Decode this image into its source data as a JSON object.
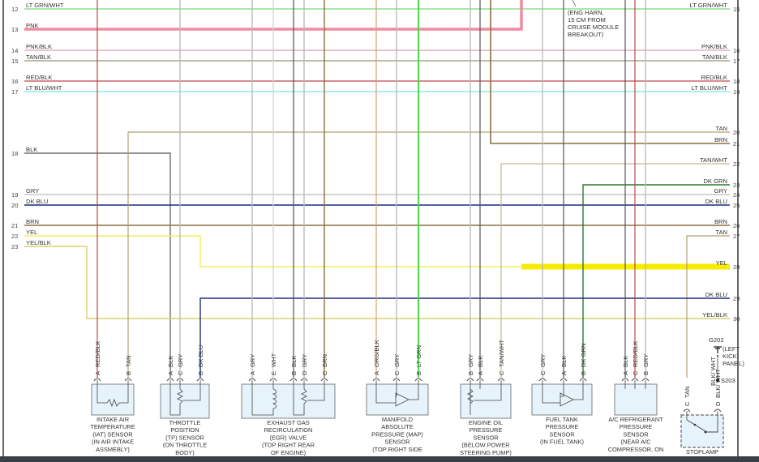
{
  "left_wires": [
    {
      "num": "12",
      "label": "LT GRN/WHT",
      "color": "#8ee08e"
    },
    {
      "num": "13",
      "label": "PNK",
      "color": "#f08ca2"
    },
    {
      "num": "14",
      "label": "PNK/BLK",
      "color": "#d8a4b4"
    },
    {
      "num": "15",
      "label": "TAN/BLK",
      "color": "#9a9478"
    },
    {
      "num": "16",
      "label": "RED/BLK",
      "color": "#c04848"
    },
    {
      "num": "17",
      "label": "LT BLU/WHT",
      "color": "#90e8e8"
    },
    {
      "num": "18",
      "label": "BLK",
      "color": "#555555"
    },
    {
      "num": "19",
      "label": "GRY",
      "color": "#bbbbbb"
    },
    {
      "num": "20",
      "label": "DK BLU",
      "color": "#1a2a80"
    },
    {
      "num": "21",
      "label": "BRN",
      "color": "#8a7040"
    },
    {
      "num": "22",
      "label": "YEL",
      "color": "#f2f066"
    },
    {
      "num": "23",
      "label": "YEL/BLK",
      "color": "#d8d070"
    }
  ],
  "right_wires": [
    {
      "num": "15",
      "label": "LT GRN/WHT"
    },
    {
      "num": "16",
      "label": "PNK/BLK"
    },
    {
      "num": "17",
      "label": "TAN/BLK"
    },
    {
      "num": "18",
      "label": "RED/BLK"
    },
    {
      "num": "19",
      "label": "LT BLU/WHT"
    },
    {
      "num": "20",
      "label": "TAN"
    },
    {
      "num": "21",
      "label": "BRN"
    },
    {
      "num": "22",
      "label": "TAN/WHT"
    },
    {
      "num": "23",
      "label": "DK GRN"
    },
    {
      "num": "24",
      "label": "GRY"
    },
    {
      "num": "25",
      "label": "DK BLU"
    },
    {
      "num": "26",
      "label": "BRN"
    },
    {
      "num": "27",
      "label": "TAN"
    },
    {
      "num": "28",
      "label": "YEL"
    },
    {
      "num": "29",
      "label": "DK BLU"
    },
    {
      "num": "30",
      "label": "YEL/BLK"
    }
  ],
  "harness_note": [
    "(ENG HARN,",
    "15 CM FROM",
    "CRUISE MODULE",
    "BREAKOUT)"
  ],
  "components": [
    {
      "id": "iat",
      "name": [
        "INTAKE AIR",
        "TEMPERATURE",
        "(IAT) SENSOR",
        "(IN AIR INTAKE",
        "ASSMEBLY)"
      ],
      "pins": [
        {
          "letter": "A",
          "wire": "RED/BLK"
        },
        {
          "letter": "B",
          "wire": "TAN"
        }
      ]
    },
    {
      "id": "tp",
      "name": [
        "THROTTLE",
        "POSITION",
        "(TP) SENSOR",
        "(ON THROTTLE",
        "BODY)"
      ],
      "pins": [
        {
          "letter": "A",
          "wire": "BLK"
        },
        {
          "letter": "C",
          "wire": "GRY"
        },
        {
          "letter": "B",
          "wire": "DK BLU"
        }
      ]
    },
    {
      "id": "egr",
      "name": [
        "EXHAUST GAS",
        "RECIRCULATION",
        "(EGR) VALVE",
        "(TOP RIGHT REAR",
        "OF ENGINE)"
      ],
      "pins": [
        {
          "letter": "A",
          "wire": "GRY"
        },
        {
          "letter": "E",
          "wire": "WHT"
        },
        {
          "letter": "B",
          "wire": "BLK"
        },
        {
          "letter": "D",
          "wire": "GRY"
        },
        {
          "letter": "C",
          "wire": "BRN"
        }
      ]
    },
    {
      "id": "map",
      "name": [
        "MANIFOLD",
        "ABSOLUTE",
        "PRESSURE (MAP)",
        "SENSOR",
        "(TOP RIGHT SIDE"
      ],
      "pins": [
        {
          "letter": "A",
          "wire": "ORG/BLK"
        },
        {
          "letter": "C",
          "wire": "GRY"
        },
        {
          "letter": "B",
          "wire": "LT GRN"
        }
      ]
    },
    {
      "id": "oil",
      "name": [
        "ENGINE OIL",
        "PRESSURE",
        "SENSOR",
        "(BELOW POWER",
        "STEERING PUMP)"
      ],
      "pins": [
        {
          "letter": "B",
          "wire": "GRY"
        },
        {
          "letter": "A",
          "wire": "BLK"
        },
        {
          "letter": "C",
          "wire": "TAN/WHT"
        }
      ]
    },
    {
      "id": "fuel",
      "name": [
        "FUEL TANK",
        "PRESSURE",
        "SENSOR",
        "(IN FUEL TANK)"
      ],
      "pins": [
        {
          "letter": "C",
          "wire": "GRY"
        },
        {
          "letter": "A",
          "wire": "BLK"
        },
        {
          "letter": "B",
          "wire": "DK GRN"
        }
      ]
    },
    {
      "id": "ac",
      "name": [
        "A/C REFRIGERANT",
        "PRESSURE",
        "SENSOR",
        "(NEAR A/C",
        "COMPRESSOR, ON"
      ],
      "pins": [
        {
          "letter": "A",
          "wire": "BLK"
        },
        {
          "letter": "C",
          "wire": "RED/BLK"
        },
        {
          "letter": "B",
          "wire": "GRY"
        }
      ]
    },
    {
      "id": "stoplamp",
      "name": [
        "STOPLAMP"
      ],
      "pins": [
        {
          "letter": "C",
          "wire": "TAN"
        },
        {
          "letter": "D",
          "wire": "BLK/ WHT"
        }
      ]
    }
  ],
  "ground": {
    "name": "G202",
    "location": [
      "(LEFT",
      "KICK",
      "PANEL)"
    ],
    "wire": "BLK/ WHT",
    "splice": "S203"
  },
  "colors": {
    "border": "#333333",
    "component_fill": "#e6f3fb",
    "component_stroke": "#666666",
    "highlight_yellow": "#f5ec00"
  }
}
